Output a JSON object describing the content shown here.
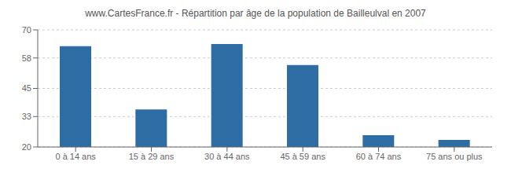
{
  "chart_data": {
    "type": "bar",
    "title": "www.CartesFrance.fr - Répartition par âge de la population de Bailleulval en 2007",
    "categories": [
      "0 à 14 ans",
      "15 à 29 ans",
      "30 à 44 ans",
      "45 à 59 ans",
      "60 à 74 ans",
      "75 ans ou plus"
    ],
    "values": [
      63,
      36,
      64,
      55,
      25,
      23
    ],
    "color": "#2e6da4",
    "ylim": [
      20,
      70
    ],
    "yticks": [
      20,
      33,
      45,
      58,
      70
    ],
    "grid": true
  }
}
